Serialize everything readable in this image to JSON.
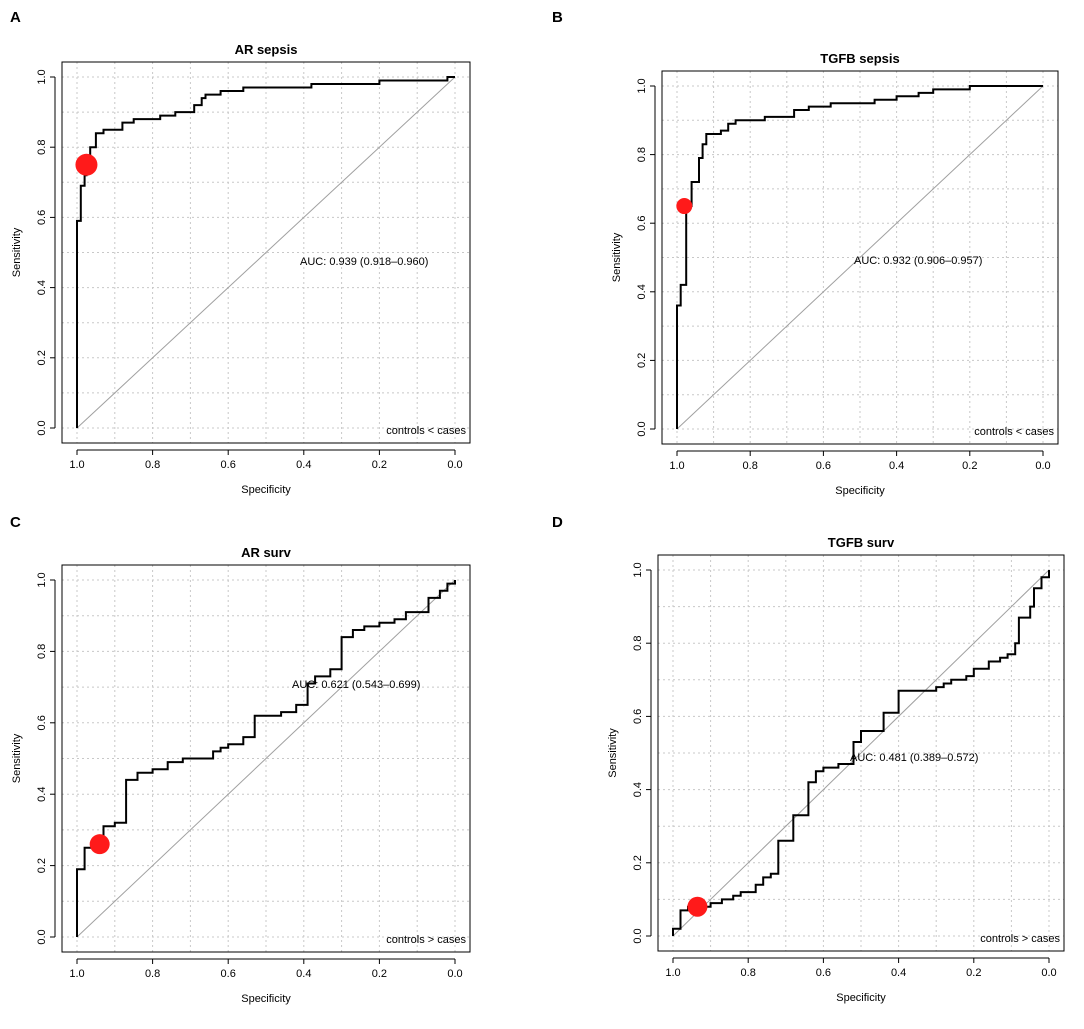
{
  "chart_data": [
    {
      "type": "line",
      "panel": "A",
      "title": "AR sepsis",
      "xlabel": "Specificity",
      "ylabel": "Sensitivity",
      "xlim": [
        1.0,
        0.0
      ],
      "ylim": [
        0.0,
        1.0
      ],
      "xticks": [
        "1.0",
        "0.8",
        "0.6",
        "0.4",
        "0.2",
        "0.0"
      ],
      "yticks": [
        "0.0",
        "0.2",
        "0.4",
        "0.6",
        "0.8",
        "1.0"
      ],
      "auc_text": "AUC: 0.939 (0.918–0.960)",
      "direction": "controls < cases",
      "cutoff_point": {
        "specificity": 0.975,
        "sensitivity": 0.75
      },
      "roc": [
        [
          1.0,
          0.0
        ],
        [
          1.0,
          0.59
        ],
        [
          0.99,
          0.59
        ],
        [
          0.99,
          0.69
        ],
        [
          0.98,
          0.69
        ],
        [
          0.98,
          0.72
        ],
        [
          0.975,
          0.72
        ],
        [
          0.975,
          0.75
        ],
        [
          0.965,
          0.75
        ],
        [
          0.965,
          0.8
        ],
        [
          0.95,
          0.8
        ],
        [
          0.95,
          0.84
        ],
        [
          0.93,
          0.84
        ],
        [
          0.93,
          0.85
        ],
        [
          0.88,
          0.85
        ],
        [
          0.88,
          0.87
        ],
        [
          0.85,
          0.87
        ],
        [
          0.85,
          0.88
        ],
        [
          0.78,
          0.88
        ],
        [
          0.78,
          0.89
        ],
        [
          0.74,
          0.89
        ],
        [
          0.74,
          0.9
        ],
        [
          0.69,
          0.9
        ],
        [
          0.69,
          0.92
        ],
        [
          0.67,
          0.92
        ],
        [
          0.67,
          0.94
        ],
        [
          0.66,
          0.94
        ],
        [
          0.66,
          0.95
        ],
        [
          0.62,
          0.95
        ],
        [
          0.62,
          0.96
        ],
        [
          0.56,
          0.96
        ],
        [
          0.56,
          0.97
        ],
        [
          0.38,
          0.97
        ],
        [
          0.38,
          0.98
        ],
        [
          0.2,
          0.98
        ],
        [
          0.2,
          0.99
        ],
        [
          0.02,
          0.99
        ],
        [
          0.02,
          1.0
        ],
        [
          0.0,
          1.0
        ]
      ]
    },
    {
      "type": "line",
      "panel": "B",
      "title": "TGFB sepsis",
      "xlabel": "Specificity",
      "ylabel": "Sensitivity",
      "xlim": [
        1.0,
        0.0
      ],
      "ylim": [
        0.0,
        1.0
      ],
      "xticks": [
        "1.0",
        "0.8",
        "0.6",
        "0.4",
        "0.2",
        "0.0"
      ],
      "yticks": [
        "0.0",
        "0.2",
        "0.4",
        "0.6",
        "0.8",
        "1.0"
      ],
      "auc_text": "AUC: 0.932 (0.906–0.957)",
      "direction": "controls < cases",
      "cutoff_point": {
        "specificity": 0.98,
        "sensitivity": 0.65
      },
      "roc": [
        [
          1.0,
          0.0
        ],
        [
          1.0,
          0.36
        ],
        [
          0.99,
          0.36
        ],
        [
          0.99,
          0.42
        ],
        [
          0.975,
          0.42
        ],
        [
          0.975,
          0.65
        ],
        [
          0.96,
          0.65
        ],
        [
          0.96,
          0.72
        ],
        [
          0.94,
          0.72
        ],
        [
          0.94,
          0.79
        ],
        [
          0.93,
          0.79
        ],
        [
          0.93,
          0.83
        ],
        [
          0.92,
          0.83
        ],
        [
          0.92,
          0.86
        ],
        [
          0.88,
          0.86
        ],
        [
          0.88,
          0.87
        ],
        [
          0.86,
          0.87
        ],
        [
          0.86,
          0.89
        ],
        [
          0.84,
          0.89
        ],
        [
          0.84,
          0.9
        ],
        [
          0.76,
          0.9
        ],
        [
          0.76,
          0.91
        ],
        [
          0.68,
          0.91
        ],
        [
          0.68,
          0.93
        ],
        [
          0.64,
          0.93
        ],
        [
          0.64,
          0.94
        ],
        [
          0.58,
          0.94
        ],
        [
          0.58,
          0.95
        ],
        [
          0.46,
          0.95
        ],
        [
          0.46,
          0.96
        ],
        [
          0.4,
          0.96
        ],
        [
          0.4,
          0.97
        ],
        [
          0.34,
          0.97
        ],
        [
          0.34,
          0.98
        ],
        [
          0.3,
          0.98
        ],
        [
          0.3,
          0.99
        ],
        [
          0.2,
          0.99
        ],
        [
          0.2,
          1.0
        ],
        [
          0.0,
          1.0
        ]
      ]
    },
    {
      "type": "line",
      "panel": "C",
      "title": "AR surv",
      "xlabel": "Specificity",
      "ylabel": "Sensitivity",
      "xlim": [
        1.0,
        0.0
      ],
      "ylim": [
        0.0,
        1.0
      ],
      "xticks": [
        "1.0",
        "0.8",
        "0.6",
        "0.4",
        "0.2",
        "0.0"
      ],
      "yticks": [
        "0.0",
        "0.2",
        "0.4",
        "0.6",
        "0.8",
        "1.0"
      ],
      "auc_text": "AUC: 0.621 (0.543–0.699)",
      "direction": "controls > cases",
      "cutoff_point": {
        "specificity": 0.94,
        "sensitivity": 0.26
      },
      "roc": [
        [
          1.0,
          0.0
        ],
        [
          1.0,
          0.19
        ],
        [
          0.98,
          0.19
        ],
        [
          0.98,
          0.25
        ],
        [
          0.95,
          0.25
        ],
        [
          0.95,
          0.28
        ],
        [
          0.93,
          0.28
        ],
        [
          0.93,
          0.31
        ],
        [
          0.9,
          0.31
        ],
        [
          0.9,
          0.32
        ],
        [
          0.87,
          0.32
        ],
        [
          0.87,
          0.44
        ],
        [
          0.84,
          0.44
        ],
        [
          0.84,
          0.46
        ],
        [
          0.8,
          0.46
        ],
        [
          0.8,
          0.47
        ],
        [
          0.76,
          0.47
        ],
        [
          0.76,
          0.49
        ],
        [
          0.72,
          0.49
        ],
        [
          0.72,
          0.5
        ],
        [
          0.64,
          0.5
        ],
        [
          0.64,
          0.52
        ],
        [
          0.62,
          0.52
        ],
        [
          0.62,
          0.53
        ],
        [
          0.6,
          0.53
        ],
        [
          0.6,
          0.54
        ],
        [
          0.56,
          0.54
        ],
        [
          0.56,
          0.56
        ],
        [
          0.53,
          0.56
        ],
        [
          0.53,
          0.62
        ],
        [
          0.46,
          0.62
        ],
        [
          0.46,
          0.63
        ],
        [
          0.42,
          0.63
        ],
        [
          0.42,
          0.65
        ],
        [
          0.39,
          0.65
        ],
        [
          0.39,
          0.71
        ],
        [
          0.37,
          0.71
        ],
        [
          0.37,
          0.73
        ],
        [
          0.33,
          0.73
        ],
        [
          0.33,
          0.75
        ],
        [
          0.3,
          0.75
        ],
        [
          0.3,
          0.84
        ],
        [
          0.27,
          0.84
        ],
        [
          0.27,
          0.86
        ],
        [
          0.24,
          0.86
        ],
        [
          0.24,
          0.87
        ],
        [
          0.2,
          0.87
        ],
        [
          0.2,
          0.88
        ],
        [
          0.16,
          0.88
        ],
        [
          0.16,
          0.89
        ],
        [
          0.13,
          0.89
        ],
        [
          0.13,
          0.91
        ],
        [
          0.07,
          0.91
        ],
        [
          0.07,
          0.95
        ],
        [
          0.04,
          0.95
        ],
        [
          0.04,
          0.97
        ],
        [
          0.02,
          0.97
        ],
        [
          0.02,
          0.99
        ],
        [
          0.0,
          0.99
        ],
        [
          0.0,
          1.0
        ]
      ]
    },
    {
      "type": "line",
      "panel": "D",
      "title": "TGFB surv",
      "xlabel": "Specificity",
      "ylabel": "Sensitivity",
      "xlim": [
        1.0,
        0.0
      ],
      "ylim": [
        0.0,
        1.0
      ],
      "xticks": [
        "1.0",
        "0.8",
        "0.6",
        "0.4",
        "0.2",
        "0.0"
      ],
      "yticks": [
        "0.0",
        "0.2",
        "0.4",
        "0.6",
        "0.8",
        "1.0"
      ],
      "auc_text": "AUC: 0.481 (0.389–0.572)",
      "direction": "controls > cases",
      "cutoff_point": {
        "specificity": 0.935,
        "sensitivity": 0.08
      },
      "roc": [
        [
          1.0,
          0.0
        ],
        [
          1.0,
          0.02
        ],
        [
          0.98,
          0.02
        ],
        [
          0.98,
          0.07
        ],
        [
          0.96,
          0.07
        ],
        [
          0.96,
          0.08
        ],
        [
          0.9,
          0.08
        ],
        [
          0.9,
          0.09
        ],
        [
          0.87,
          0.09
        ],
        [
          0.87,
          0.1
        ],
        [
          0.84,
          0.1
        ],
        [
          0.84,
          0.11
        ],
        [
          0.82,
          0.11
        ],
        [
          0.82,
          0.12
        ],
        [
          0.78,
          0.12
        ],
        [
          0.78,
          0.14
        ],
        [
          0.76,
          0.14
        ],
        [
          0.76,
          0.16
        ],
        [
          0.74,
          0.16
        ],
        [
          0.74,
          0.17
        ],
        [
          0.72,
          0.17
        ],
        [
          0.72,
          0.26
        ],
        [
          0.68,
          0.26
        ],
        [
          0.68,
          0.33
        ],
        [
          0.64,
          0.33
        ],
        [
          0.64,
          0.42
        ],
        [
          0.62,
          0.42
        ],
        [
          0.62,
          0.45
        ],
        [
          0.6,
          0.45
        ],
        [
          0.6,
          0.46
        ],
        [
          0.56,
          0.46
        ],
        [
          0.56,
          0.47
        ],
        [
          0.52,
          0.47
        ],
        [
          0.52,
          0.53
        ],
        [
          0.5,
          0.53
        ],
        [
          0.5,
          0.56
        ],
        [
          0.44,
          0.56
        ],
        [
          0.44,
          0.61
        ],
        [
          0.4,
          0.61
        ],
        [
          0.4,
          0.67
        ],
        [
          0.3,
          0.67
        ],
        [
          0.3,
          0.68
        ],
        [
          0.28,
          0.68
        ],
        [
          0.28,
          0.69
        ],
        [
          0.26,
          0.69
        ],
        [
          0.26,
          0.7
        ],
        [
          0.22,
          0.7
        ],
        [
          0.22,
          0.71
        ],
        [
          0.2,
          0.71
        ],
        [
          0.2,
          0.73
        ],
        [
          0.16,
          0.73
        ],
        [
          0.16,
          0.75
        ],
        [
          0.13,
          0.75
        ],
        [
          0.13,
          0.76
        ],
        [
          0.11,
          0.76
        ],
        [
          0.11,
          0.77
        ],
        [
          0.09,
          0.77
        ],
        [
          0.09,
          0.8
        ],
        [
          0.08,
          0.8
        ],
        [
          0.08,
          0.87
        ],
        [
          0.05,
          0.87
        ],
        [
          0.05,
          0.9
        ],
        [
          0.04,
          0.9
        ],
        [
          0.04,
          0.95
        ],
        [
          0.02,
          0.95
        ],
        [
          0.02,
          0.98
        ],
        [
          0.0,
          0.98
        ],
        [
          0.0,
          1.0
        ]
      ]
    }
  ],
  "style": {
    "roc_color": "#000000",
    "cutoff_color": "#ff1a1a",
    "diagonal_color": "#a0a0a0",
    "grid_color": "#c8c8c8"
  }
}
